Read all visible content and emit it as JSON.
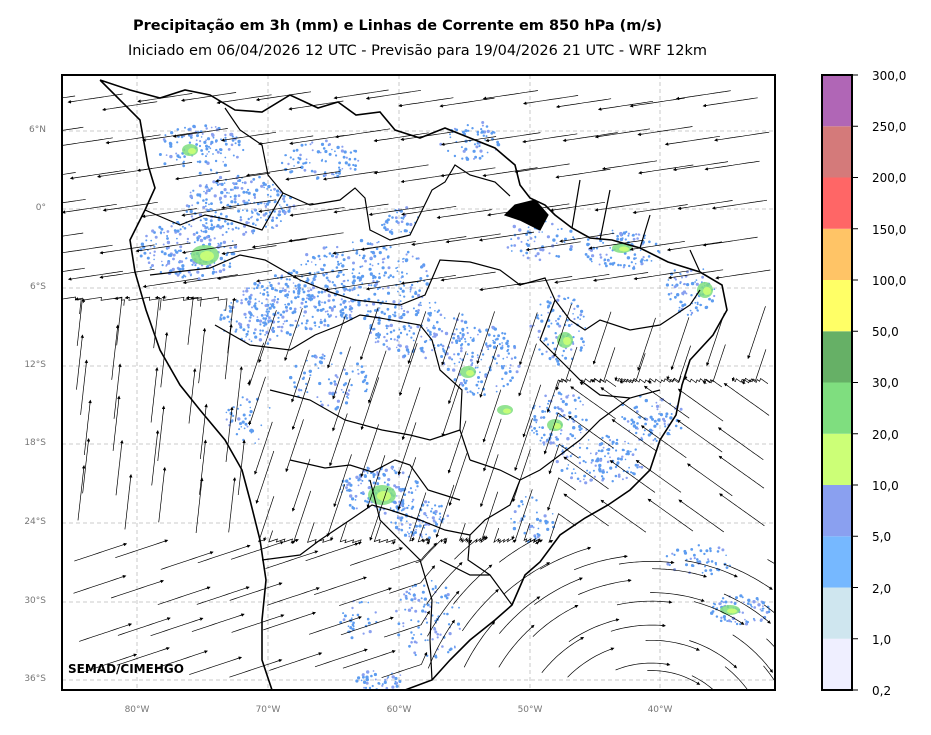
{
  "title": "Precipitação em 3h (mm) e Linhas de Corrente em 850 hPa (m/s)",
  "subtitle": "Iniciado em 06/04/2026 12 UTC - Previsão para 19/04/2026 21 UTC - WRF 12km",
  "credit": "SEMAD/CIMEHGO",
  "lat_labels": [
    "6°N",
    "0°",
    "6°S",
    "12°S",
    "18°S",
    "24°S",
    "30°S",
    "36°S"
  ],
  "lon_labels": [
    "80°W",
    "70°W",
    "60°W",
    "50°W",
    "40°W"
  ],
  "colorbar": {
    "labels": [
      "0,2",
      "1,0",
      "2,0",
      "5,0",
      "10,0",
      "20,0",
      "30,0",
      "50,0",
      "100,0",
      "150,0",
      "200,0",
      "250,0",
      "300,0"
    ],
    "colors": [
      "#efefff",
      "#cfe6ef",
      "#76b8ff",
      "#8aa0f0",
      "#ccff77",
      "#7fde7f",
      "#66b066",
      "#ffff66",
      "#ffc466",
      "#ff6666",
      "#d47a7a",
      "#b066b6"
    ]
  },
  "colors": {
    "rain_light": "#5d9cf0",
    "rain_mid": "#8aa0f0",
    "rain_green": "#7fde7f",
    "rain_yellowgreen": "#ccff77"
  }
}
